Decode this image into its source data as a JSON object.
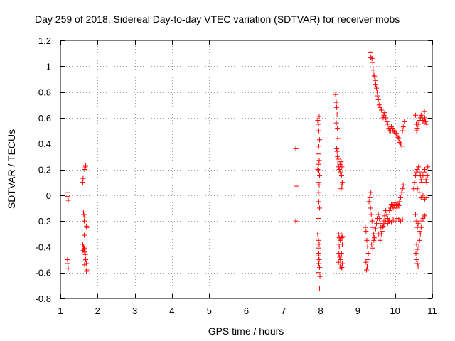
{
  "chart_data": {
    "type": "scatter",
    "title": "Day 259 of 2018, Sidereal Day-to-day VTEC variation (SDTVAR) for receiver mobs",
    "xlabel": "GPS time / hours",
    "ylabel": "SDTVAR / TECUs",
    "xlim": [
      1,
      11
    ],
    "ylim": [
      -0.8,
      1.2
    ],
    "xticks": [
      1,
      2,
      3,
      4,
      5,
      6,
      7,
      8,
      9,
      10,
      11
    ],
    "yticks": [
      -0.8,
      -0.6,
      -0.4,
      -0.2,
      0,
      0.2,
      0.4,
      0.6,
      0.8,
      1,
      1.2
    ],
    "ytick_labels": [
      "-0.8",
      "-0.6",
      "-0.4",
      "-0.2",
      "0",
      "0.2",
      "0.4",
      "0.6",
      "0.8",
      "1",
      "1.2"
    ],
    "grid": true,
    "marker": "+",
    "color": "#ff0000",
    "series": [
      {
        "name": "SDTVAR",
        "points": [
          [
            1.2,
            0.02
          ],
          [
            1.2,
            -0.01
          ],
          [
            1.21,
            -0.04
          ],
          [
            1.19,
            -0.5
          ],
          [
            1.2,
            -0.53
          ],
          [
            1.21,
            -0.57
          ],
          [
            1.6,
            0.1
          ],
          [
            1.61,
            0.13
          ],
          [
            1.65,
            0.2
          ],
          [
            1.67,
            0.22
          ],
          [
            1.68,
            0.23
          ],
          [
            1.62,
            -0.13
          ],
          [
            1.63,
            -0.15
          ],
          [
            1.65,
            -0.17
          ],
          [
            1.66,
            -0.15
          ],
          [
            1.64,
            -0.2
          ],
          [
            1.7,
            -0.24
          ],
          [
            1.71,
            -0.25
          ],
          [
            1.64,
            -0.31
          ],
          [
            1.6,
            -0.38
          ],
          [
            1.62,
            -0.4
          ],
          [
            1.63,
            -0.42
          ],
          [
            1.65,
            -0.44
          ],
          [
            1.61,
            -0.43
          ],
          [
            1.64,
            -0.41
          ],
          [
            1.67,
            -0.46
          ],
          [
            1.68,
            -0.5
          ],
          [
            1.66,
            -0.51
          ],
          [
            1.7,
            -0.53
          ],
          [
            1.65,
            -0.54
          ],
          [
            1.71,
            -0.58
          ],
          [
            1.7,
            -0.59
          ],
          [
            7.33,
            0.36
          ],
          [
            7.34,
            0.07
          ],
          [
            7.33,
            -0.2
          ],
          [
            7.92,
            0.58
          ],
          [
            7.94,
            0.55
          ],
          [
            7.96,
            0.61
          ],
          [
            7.95,
            0.5
          ],
          [
            7.97,
            0.43
          ],
          [
            7.95,
            0.38
          ],
          [
            7.93,
            0.32
          ],
          [
            7.96,
            0.27
          ],
          [
            7.94,
            0.24
          ],
          [
            7.92,
            0.2
          ],
          [
            7.95,
            0.19
          ],
          [
            7.97,
            0.15
          ],
          [
            7.93,
            0.1
          ],
          [
            7.96,
            0.08
          ],
          [
            7.94,
            0.02
          ],
          [
            7.95,
            -0.05
          ],
          [
            7.97,
            -0.1
          ],
          [
            7.93,
            -0.18
          ],
          [
            7.92,
            -0.3
          ],
          [
            7.94,
            -0.35
          ],
          [
            7.96,
            -0.38
          ],
          [
            7.93,
            -0.41
          ],
          [
            7.95,
            -0.45
          ],
          [
            7.94,
            -0.47
          ],
          [
            7.96,
            -0.5
          ],
          [
            7.95,
            -0.53
          ],
          [
            7.97,
            -0.56
          ],
          [
            7.93,
            -0.6
          ],
          [
            7.98,
            -0.63
          ],
          [
            7.97,
            -0.72
          ],
          [
            8.4,
            0.78
          ],
          [
            8.42,
            0.72
          ],
          [
            8.43,
            0.68
          ],
          [
            8.44,
            0.63
          ],
          [
            8.42,
            0.56
          ],
          [
            8.45,
            0.52
          ],
          [
            8.46,
            0.44
          ],
          [
            8.43,
            0.36
          ],
          [
            8.44,
            0.34
          ],
          [
            8.45,
            0.3
          ],
          [
            8.47,
            0.28
          ],
          [
            8.46,
            0.25
          ],
          [
            8.48,
            0.22
          ],
          [
            8.5,
            0.2
          ],
          [
            8.52,
            0.24
          ],
          [
            8.55,
            0.26
          ],
          [
            8.57,
            0.22
          ],
          [
            8.53,
            0.18
          ],
          [
            8.56,
            0.15
          ],
          [
            8.58,
            0.1
          ],
          [
            8.55,
            0.05
          ],
          [
            8.57,
            0.08
          ],
          [
            8.48,
            -0.3
          ],
          [
            8.5,
            -0.33
          ],
          [
            8.52,
            -0.35
          ],
          [
            8.47,
            -0.38
          ],
          [
            8.5,
            -0.4
          ],
          [
            8.49,
            -0.45
          ],
          [
            8.51,
            -0.48
          ],
          [
            8.53,
            -0.5
          ],
          [
            8.48,
            -0.52
          ],
          [
            8.52,
            -0.55
          ],
          [
            8.55,
            -0.57
          ],
          [
            8.57,
            -0.56
          ],
          [
            8.58,
            -0.53
          ],
          [
            8.56,
            -0.45
          ],
          [
            8.58,
            -0.38
          ],
          [
            8.59,
            -0.32
          ],
          [
            8.55,
            -0.3
          ],
          [
            8.57,
            -0.33
          ],
          [
            9.33,
            1.11
          ],
          [
            9.35,
            1.07
          ],
          [
            9.38,
            1.06
          ],
          [
            9.4,
            1.03
          ],
          [
            9.41,
            0.97
          ],
          [
            9.43,
            0.93
          ],
          [
            9.45,
            0.92
          ],
          [
            9.47,
            0.89
          ],
          [
            9.48,
            0.86
          ],
          [
            9.5,
            0.83
          ],
          [
            9.52,
            0.8
          ],
          [
            9.53,
            0.77
          ],
          [
            9.55,
            0.74
          ],
          [
            9.57,
            0.7
          ],
          [
            9.6,
            0.68
          ],
          [
            9.63,
            0.66
          ],
          [
            9.65,
            0.63
          ],
          [
            9.68,
            0.6
          ],
          [
            9.7,
            0.62
          ],
          [
            9.72,
            0.64
          ],
          [
            9.75,
            0.6
          ],
          [
            9.78,
            0.57
          ],
          [
            9.8,
            0.55
          ],
          [
            9.83,
            0.52
          ],
          [
            9.85,
            0.5
          ],
          [
            9.88,
            0.5
          ],
          [
            9.9,
            0.53
          ],
          [
            9.93,
            0.52
          ],
          [
            9.95,
            0.5
          ],
          [
            9.98,
            0.49
          ],
          [
            10.0,
            0.5
          ],
          [
            10.03,
            0.48
          ],
          [
            10.05,
            0.46
          ],
          [
            10.08,
            0.45
          ],
          [
            10.1,
            0.44
          ],
          [
            10.12,
            0.41
          ],
          [
            10.15,
            0.4
          ],
          [
            10.18,
            0.38
          ],
          [
            10.2,
            0.5
          ],
          [
            10.22,
            0.53
          ],
          [
            10.25,
            0.57
          ],
          [
            9.2,
            -0.25
          ],
          [
            9.22,
            -0.28
          ],
          [
            9.24,
            -0.35
          ],
          [
            9.26,
            -0.4
          ],
          [
            9.28,
            -0.45
          ],
          [
            9.22,
            -0.52
          ],
          [
            9.25,
            -0.55
          ],
          [
            9.23,
            -0.58
          ],
          [
            9.27,
            -0.5
          ],
          [
            9.3,
            -0.05
          ],
          [
            9.32,
            -0.02
          ],
          [
            9.35,
            0.02
          ],
          [
            9.34,
            -0.1
          ],
          [
            9.36,
            -0.15
          ],
          [
            9.38,
            -0.2
          ],
          [
            9.4,
            -0.25
          ],
          [
            9.42,
            -0.3
          ],
          [
            9.44,
            -0.33
          ],
          [
            9.37,
            -0.38
          ],
          [
            9.4,
            -0.41
          ],
          [
            9.43,
            -0.35
          ],
          [
            9.46,
            -0.3
          ],
          [
            9.48,
            -0.26
          ],
          [
            9.5,
            -0.22
          ],
          [
            9.52,
            -0.18
          ],
          [
            9.55,
            -0.15
          ],
          [
            9.58,
            -0.18
          ],
          [
            9.6,
            -0.22
          ],
          [
            9.62,
            -0.25
          ],
          [
            9.65,
            -0.28
          ],
          [
            9.68,
            -0.24
          ],
          [
            9.7,
            -0.2
          ],
          [
            9.72,
            -0.16
          ],
          [
            9.75,
            -0.12
          ],
          [
            9.78,
            -0.15
          ],
          [
            9.8,
            -0.18
          ],
          [
            9.83,
            -0.2
          ],
          [
            9.85,
            -0.12
          ],
          [
            9.88,
            -0.1
          ],
          [
            9.9,
            -0.07
          ],
          [
            9.93,
            -0.08
          ],
          [
            9.95,
            -0.1
          ],
          [
            9.98,
            -0.08
          ],
          [
            10.0,
            -0.06
          ],
          [
            10.03,
            -0.08
          ],
          [
            10.05,
            -0.1
          ],
          [
            10.08,
            -0.07
          ],
          [
            10.1,
            -0.08
          ],
          [
            10.12,
            -0.05
          ],
          [
            10.15,
            -0.02
          ],
          [
            10.18,
            0.02
          ],
          [
            10.2,
            0.05
          ],
          [
            10.22,
            0.08
          ],
          [
            9.56,
            -0.3
          ],
          [
            9.6,
            -0.35
          ],
          [
            9.63,
            -0.3
          ],
          [
            9.66,
            -0.25
          ],
          [
            9.7,
            -0.22
          ],
          [
            9.74,
            -0.2
          ],
          [
            9.8,
            -0.22
          ],
          [
            9.85,
            -0.2
          ],
          [
            9.9,
            -0.21
          ],
          [
            9.95,
            -0.19
          ],
          [
            10.0,
            -0.2
          ],
          [
            10.05,
            -0.18
          ],
          [
            10.1,
            -0.19
          ],
          [
            10.15,
            -0.2
          ],
          [
            10.2,
            -0.19
          ],
          [
            10.55,
            0.62
          ],
          [
            10.57,
            0.55
          ],
          [
            10.58,
            0.5
          ],
          [
            10.6,
            0.52
          ],
          [
            10.62,
            0.55
          ],
          [
            10.65,
            0.58
          ],
          [
            10.68,
            0.6
          ],
          [
            10.7,
            0.62
          ],
          [
            10.73,
            0.6
          ],
          [
            10.75,
            0.58
          ],
          [
            10.78,
            0.56
          ],
          [
            10.8,
            0.6
          ],
          [
            10.82,
            0.57
          ],
          [
            10.85,
            0.55
          ],
          [
            10.79,
            0.65
          ],
          [
            10.5,
            0.05
          ],
          [
            10.52,
            0.1
          ],
          [
            10.55,
            0.15
          ],
          [
            10.58,
            0.18
          ],
          [
            10.6,
            0.2
          ],
          [
            10.63,
            0.22
          ],
          [
            10.65,
            0.18
          ],
          [
            10.68,
            0.15
          ],
          [
            10.7,
            0.12
          ],
          [
            10.72,
            0.1
          ],
          [
            10.75,
            0.15
          ],
          [
            10.78,
            0.18
          ],
          [
            10.8,
            0.2
          ],
          [
            10.83,
            0.12
          ],
          [
            10.85,
            0.1
          ],
          [
            10.87,
            0.15
          ],
          [
            10.6,
            0.05
          ],
          [
            10.65,
            0.02
          ],
          [
            10.7,
            -0.02
          ],
          [
            10.75,
            0.0
          ],
          [
            10.8,
            -0.03
          ],
          [
            10.85,
            -0.02
          ],
          [
            10.88,
            0.22
          ],
          [
            10.55,
            -0.15
          ],
          [
            10.58,
            -0.2
          ],
          [
            10.6,
            -0.25
          ],
          [
            10.62,
            -0.22
          ],
          [
            10.65,
            -0.28
          ],
          [
            10.68,
            -0.3
          ],
          [
            10.7,
            -0.25
          ],
          [
            10.72,
            -0.2
          ],
          [
            10.75,
            -0.18
          ],
          [
            10.78,
            -0.15
          ],
          [
            10.8,
            -0.16
          ],
          [
            10.58,
            -0.38
          ],
          [
            10.6,
            -0.42
          ],
          [
            10.56,
            -0.45
          ],
          [
            10.58,
            -0.5
          ],
          [
            10.6,
            -0.53
          ],
          [
            10.62,
            -0.55
          ],
          [
            10.64,
            -0.4
          ],
          [
            10.66,
            -0.35
          ]
        ]
      }
    ]
  }
}
